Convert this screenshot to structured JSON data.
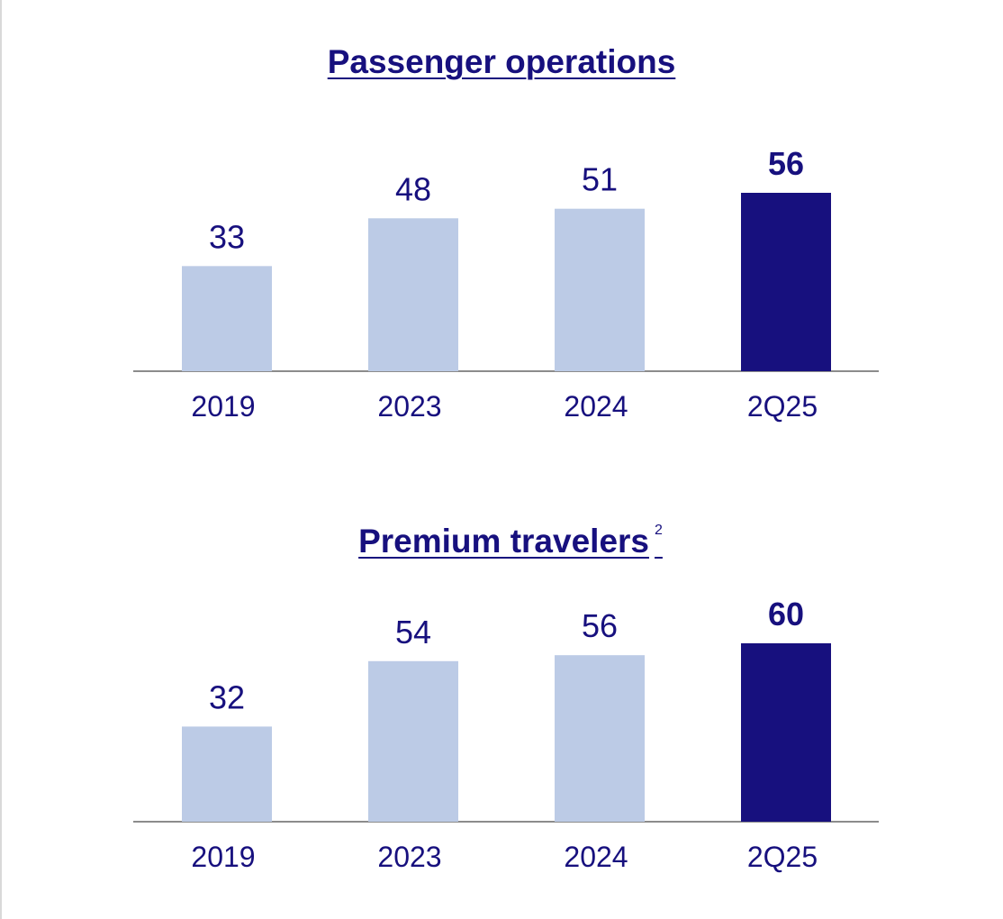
{
  "colors": {
    "past_bar": "#bccbe6",
    "current_bar": "#17107e",
    "text": "#17107e",
    "axis": "#8c8c8c"
  },
  "chart_data": [
    {
      "type": "bar",
      "title": "Passenger operations",
      "categories": [
        "2019",
        "2023",
        "2024",
        "2Q25"
      ],
      "values": [
        33,
        48,
        51,
        56
      ],
      "data_labels": [
        "33",
        "48",
        "51",
        "56"
      ],
      "highlight_index": 3,
      "ylim": [
        0,
        56
      ],
      "grid": false
    },
    {
      "type": "bar",
      "title": "Premium travelers",
      "title_footnote": "2",
      "categories": [
        "2019",
        "2023",
        "2024",
        "2Q25"
      ],
      "values": [
        32,
        54,
        56,
        60
      ],
      "data_labels": [
        "32",
        "54",
        "56",
        "60"
      ],
      "highlight_index": 3,
      "ylim": [
        0,
        60
      ],
      "grid": false
    }
  ]
}
